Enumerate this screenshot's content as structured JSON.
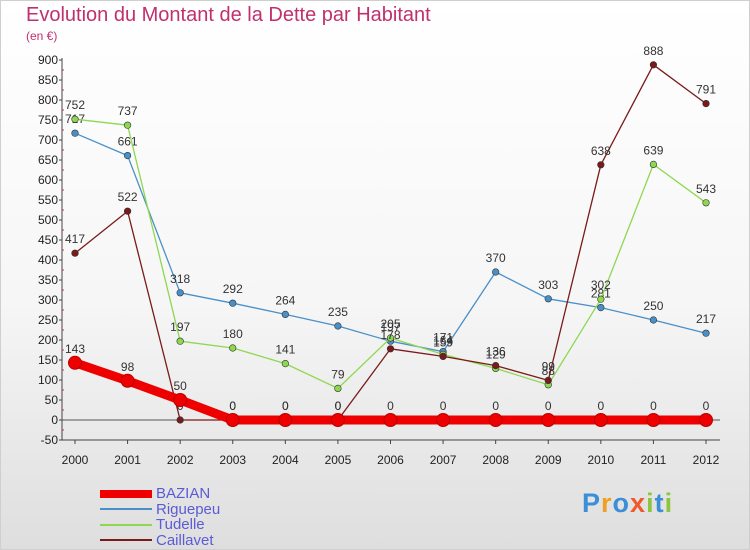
{
  "chart_data": {
    "type": "line",
    "title": "Evolution du Montant de la Dette par Habitant",
    "subtitle": "(en €)",
    "x": [
      "2000",
      "2001",
      "2002",
      "2003",
      "2004",
      "2005",
      "2006",
      "2007",
      "2008",
      "2009",
      "2010",
      "2011",
      "2012"
    ],
    "ylim": [
      -50,
      900
    ],
    "yticks": [
      -50,
      0,
      50,
      100,
      150,
      200,
      250,
      300,
      350,
      400,
      450,
      500,
      550,
      600,
      650,
      700,
      750,
      800,
      850,
      900
    ],
    "grid": false,
    "legend_position": "bottom-left",
    "series": [
      {
        "name": "BAZIAN",
        "color": "#ee0000",
        "values": [
          143,
          98,
          50,
          0,
          0,
          0,
          0,
          0,
          0,
          0,
          0,
          0,
          0
        ]
      },
      {
        "name": "Riguepeu",
        "color": "#4a90c8",
        "values": [
          717,
          661,
          318,
          292,
          264,
          235,
          197,
          171,
          370,
          303,
          281,
          250,
          217
        ]
      },
      {
        "name": "Tudelle",
        "color": "#8ed850",
        "values": [
          752,
          737,
          197,
          180,
          141,
          79,
          205,
          164,
          129,
          88,
          302,
          639,
          543
        ]
      },
      {
        "name": "Caillavet",
        "color": "#7a1a1a",
        "values": [
          417,
          522,
          0,
          0,
          0,
          0,
          178,
          159,
          136,
          99,
          638,
          888,
          791
        ]
      }
    ]
  },
  "logo": {
    "text": "Proxiti",
    "letters": [
      {
        "ch": "P",
        "color": "#3a8fd6"
      },
      {
        "ch": "r",
        "color": "#f0a020"
      },
      {
        "ch": "o",
        "color": "#3a8fd6"
      },
      {
        "ch": "x",
        "color": "#f05a2a"
      },
      {
        "ch": "i",
        "color": "#8cc63f"
      },
      {
        "ch": "t",
        "color": "#3a8fd6"
      },
      {
        "ch": "i",
        "color": "#8cc63f"
      }
    ]
  }
}
